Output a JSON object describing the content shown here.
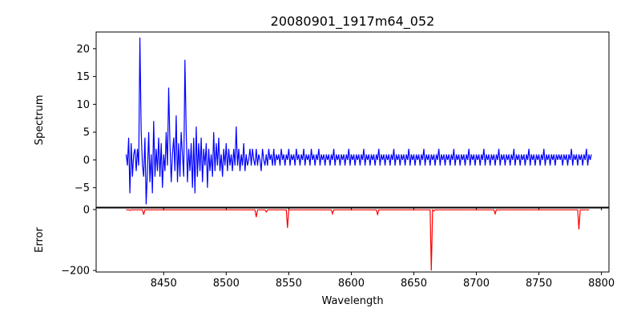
{
  "chart_data": [
    {
      "type": "line",
      "title": "20080901_1917m64_052",
      "xlabel": "",
      "ylabel": "Spectrum",
      "xlim": [
        8396,
        8806
      ],
      "ylim": [
        -8.5,
        23
      ],
      "yticks": [
        -5,
        0,
        5,
        10,
        15,
        20
      ],
      "xticks": [
        8450,
        8500,
        8550,
        8600,
        8650,
        8700,
        8750,
        8800
      ],
      "show_x_tick_labels": false,
      "series": [
        {
          "name": "Spectrum",
          "color": "#0000ff",
          "start": 8420,
          "step": 1,
          "values": [
            1,
            -1,
            4,
            -6,
            3,
            -3,
            1,
            2,
            -2,
            2,
            -1,
            22,
            5,
            -1,
            -3,
            4,
            -8,
            -2,
            5,
            -4,
            1,
            -6,
            7,
            -3,
            2,
            -2,
            4,
            -3,
            3,
            -5,
            1,
            -2,
            5,
            -1,
            13,
            3,
            -4,
            1,
            4,
            -2,
            8,
            -4,
            3,
            -3,
            5,
            1,
            -3,
            18,
            5,
            -4,
            2,
            -2,
            3,
            -5,
            4,
            -6,
            6,
            -3,
            3,
            -2,
            4,
            -4,
            2,
            -1,
            3,
            -5,
            2,
            -2,
            1,
            -3,
            5,
            -2,
            3,
            -1,
            4,
            -2,
            1,
            -3,
            2,
            -1,
            3,
            -2,
            2,
            -1,
            1,
            -2,
            2,
            -1,
            6,
            -1,
            2,
            -2,
            1,
            -1,
            3,
            -2,
            1,
            -1,
            0,
            2,
            -1,
            2,
            0,
            -1,
            2,
            -1,
            1,
            0,
            -2,
            2,
            0,
            -1,
            1,
            -1,
            2,
            0,
            1,
            -1,
            2,
            -1,
            1,
            0,
            1,
            -1,
            2,
            0,
            1,
            -1,
            1,
            0,
            2,
            -1,
            1,
            0,
            1,
            -1,
            2,
            0,
            1,
            -1,
            1,
            0,
            2,
            -1,
            1,
            0,
            1,
            -1,
            2,
            0,
            1,
            -1,
            1,
            0,
            2,
            -1,
            1,
            0,
            1,
            -1,
            1,
            0,
            1,
            -1,
            1,
            0,
            2,
            -1,
            1,
            0,
            1,
            -1,
            1,
            0,
            1,
            -1,
            1,
            0,
            2,
            -1,
            1,
            0,
            1,
            -1,
            1,
            0,
            1,
            -1,
            1,
            0,
            2,
            -1,
            1,
            0,
            1,
            -1,
            1,
            0,
            1,
            -1,
            1,
            0,
            2,
            -1,
            1,
            0,
            1,
            -1,
            1,
            0,
            1,
            -1,
            1,
            0,
            2,
            -1,
            1,
            0,
            1,
            -1,
            1,
            0,
            1,
            -1,
            1,
            0,
            2,
            -1,
            1,
            0,
            1,
            -1,
            1,
            0,
            1,
            -1,
            1,
            0,
            2,
            -1,
            1,
            0,
            1,
            -1,
            1,
            0,
            1,
            -1,
            1,
            0,
            2,
            -1,
            1,
            0,
            1,
            -1,
            1,
            0,
            1,
            -1,
            1,
            0,
            2,
            -1,
            1,
            0,
            1,
            -1,
            1,
            0,
            1,
            -1,
            1,
            0,
            2,
            -1,
            1,
            0,
            1,
            -1,
            1,
            0,
            1,
            -1,
            1,
            0,
            2,
            -1,
            1,
            0,
            1,
            -1,
            1,
            0,
            1,
            -1,
            1,
            0,
            2,
            -1,
            1,
            0,
            1,
            -1,
            1,
            0,
            1,
            -1,
            1,
            0,
            2,
            -1,
            1,
            0,
            1,
            -1,
            1,
            0,
            1,
            -1,
            1,
            0,
            2,
            -1,
            1,
            0,
            1,
            -1,
            1,
            0,
            1,
            -1,
            1,
            0,
            2,
            -1,
            1,
            0,
            1,
            -1,
            1,
            0,
            1,
            -1,
            1,
            0,
            1,
            0,
            1,
            -1,
            1,
            0,
            1,
            -1,
            1,
            0,
            2,
            -1,
            1,
            0,
            1,
            -1,
            1,
            0,
            1,
            -1,
            1,
            0,
            2,
            -1,
            1,
            0,
            1
          ]
        }
      ]
    },
    {
      "type": "line",
      "title": "",
      "xlabel": "Wavelength",
      "ylabel": "Error",
      "xlim": [
        8396,
        8806
      ],
      "ylim": [
        -205,
        5
      ],
      "yticks": [
        -200,
        0
      ],
      "xticks": [
        8450,
        8500,
        8550,
        8600,
        8650,
        8700,
        8750,
        8800
      ],
      "xticklabels": [
        "8450",
        "8500",
        "8550",
        "8600",
        "8650",
        "8700",
        "8750",
        "8800"
      ],
      "series": [
        {
          "name": "Error",
          "color": "#ff0000",
          "baseline": -1,
          "range": [
            8420,
            8790
          ],
          "dips": [
            {
              "x": 8423,
              "y": -3
            },
            {
              "x": 8434,
              "y": -17
            },
            {
              "x": 8524,
              "y": -25
            },
            {
              "x": 8532,
              "y": -8
            },
            {
              "x": 8549,
              "y": -60
            },
            {
              "x": 8585,
              "y": -14
            },
            {
              "x": 8621,
              "y": -16
            },
            {
              "x": 8664,
              "y": -200
            },
            {
              "x": 8666,
              "y": -5
            },
            {
              "x": 8715,
              "y": -14
            },
            {
              "x": 8782,
              "y": -65
            }
          ]
        }
      ]
    }
  ]
}
